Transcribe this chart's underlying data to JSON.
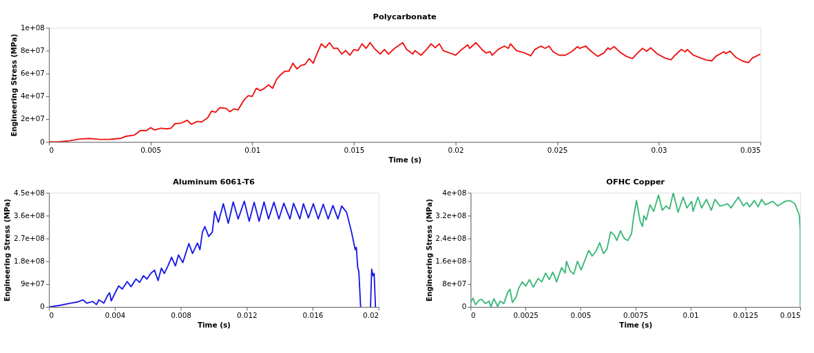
{
  "chart_data": [
    {
      "type": "line",
      "title": "Polycarbonate",
      "xlabel": "Time (s)",
      "ylabel": "Engineering Stress (MPa)",
      "xlim": [
        0,
        0.035
      ],
      "ylim": [
        0,
        100000000.0
      ],
      "xticks": [
        0,
        0.005,
        0.01,
        0.015,
        0.02,
        0.025,
        0.03,
        0.035
      ],
      "yticks": [
        0,
        {
          "value": 20000000.0,
          "label": "2e+07"
        },
        {
          "value": 40000000.0,
          "label": "4e+07"
        },
        {
          "value": 60000000.0,
          "label": "6e+07"
        },
        {
          "value": 80000000.0,
          "label": "8e+07"
        },
        {
          "value": 100000000.0,
          "label": "1e+08"
        }
      ],
      "x": [
        0,
        0.0005,
        0.001,
        0.0015,
        0.002,
        0.0025,
        0.003,
        0.0035,
        0.0038,
        0.0042,
        0.0045,
        0.0048,
        0.005,
        0.0052,
        0.0055,
        0.0058,
        0.006,
        0.0062,
        0.0065,
        0.0068,
        0.007,
        0.0073,
        0.0075,
        0.0078,
        0.008,
        0.0082,
        0.0084,
        0.0087,
        0.0089,
        0.0091,
        0.0093,
        0.0096,
        0.0098,
        0.01,
        0.0102,
        0.0104,
        0.0106,
        0.0108,
        0.011,
        0.0112,
        0.0114,
        0.0116,
        0.0118,
        0.012,
        0.0122,
        0.0124,
        0.0126,
        0.0128,
        0.013,
        0.0132,
        0.0134,
        0.0136,
        0.0138,
        0.014,
        0.0142,
        0.0144,
        0.0146,
        0.0148,
        0.015,
        0.0152,
        0.0154,
        0.0156,
        0.0158,
        0.016,
        0.0163,
        0.0165,
        0.0167,
        0.017,
        0.0174,
        0.0176,
        0.0179,
        0.018,
        0.0183,
        0.0186,
        0.0188,
        0.019,
        0.0192,
        0.0194,
        0.0197,
        0.02,
        0.0203,
        0.0206,
        0.0207,
        0.021,
        0.0213,
        0.0215,
        0.0217,
        0.0218,
        0.0221,
        0.0224,
        0.0226,
        0.0227,
        0.023,
        0.0234,
        0.0237,
        0.0239,
        0.0242,
        0.0244,
        0.0246,
        0.0248,
        0.0251,
        0.0254,
        0.0257,
        0.026,
        0.0261,
        0.0264,
        0.0267,
        0.027,
        0.0273,
        0.0275,
        0.0276,
        0.0278,
        0.0281,
        0.0284,
        0.0287,
        0.0289,
        0.0292,
        0.0294,
        0.0296,
        0.0299,
        0.0303,
        0.0306,
        0.0308,
        0.0311,
        0.0313,
        0.0314,
        0.0317,
        0.0323,
        0.0326,
        0.0328,
        0.0332,
        0.0333,
        0.0335,
        0.0338,
        0.0341,
        0.0344,
        0.0346,
        0.035
      ],
      "series": [
        {
          "color": "#ee1111",
          "values": [
            0,
            200000.0,
            1000000.0,
            2500000.0,
            3000000.0,
            2200000.0,
            2300000.0,
            3000000.0,
            5000000.0,
            6000000.0,
            10000000.0,
            10000000.0,
            12500000.0,
            10500000.0,
            12000000.0,
            11500000.0,
            12000000.0,
            16000000.0,
            16500000.0,
            19000000.0,
            15500000.0,
            18000000.0,
            17500000.0,
            21000000.0,
            27000000.0,
            26000000.0,
            30000000.0,
            29500000.0,
            26500000.0,
            29000000.0,
            28000000.0,
            37000000.0,
            40500000.0,
            40000000.0,
            47000000.0,
            45000000.0,
            47000000.0,
            50000000.0,
            47000000.0,
            55000000.0,
            59000000.0,
            62000000.0,
            62000000.0,
            69000000.0,
            64000000.0,
            67000000.0,
            68000000.0,
            73000000.0,
            69000000.0,
            78000000.0,
            86000000.0,
            82500000.0,
            87000000.0,
            82000000.0,
            82000000.0,
            77000000.0,
            80000000.0,
            76000000.0,
            81000000.0,
            80000000.0,
            86000000.0,
            82000000.0,
            87000000.0,
            82000000.0,
            77000000.0,
            81000000.0,
            77000000.0,
            82000000.0,
            87000000.0,
            81000000.0,
            77000000.0,
            80000000.0,
            76000000.0,
            81500000.0,
            86000000.0,
            82500000.0,
            86000000.0,
            80000000.0,
            78000000.0,
            76000000.0,
            81000000.0,
            85000000.0,
            82000000.0,
            87000000.0,
            81000000.0,
            78000000.0,
            79000000.0,
            76000000.0,
            81000000.0,
            84000000.0,
            82000000.0,
            86000000.0,
            80000000.0,
            78000000.0,
            75500000.0,
            81000000.0,
            84000000.0,
            82000000.0,
            84000000.0,
            79000000.0,
            76000000.0,
            76000000.0,
            79000000.0,
            83500000.0,
            82000000.0,
            84000000.0,
            79000000.0,
            75000000.0,
            78000000.0,
            82500000.0,
            81000000.0,
            83500000.0,
            78500000.0,
            75000000.0,
            73000000.0,
            77000000.0,
            82000000.0,
            79500000.0,
            82500000.0,
            77500000.0,
            73500000.0,
            72000000.0,
            76000000.0,
            81000000.0,
            79000000.0,
            81000000.0,
            76000000.0,
            72000000.0,
            71000000.0,
            75000000.0,
            79000000.0,
            77500000.0,
            79500000.0,
            74000000.0,
            71000000.0,
            69500000.0,
            73500000.0,
            77000000.0
          ]
        }
      ]
    },
    {
      "type": "line",
      "title": "Aluminum 6061-T6",
      "xlabel": "Time (s)",
      "ylabel": "Engineering Stress (MPa)",
      "xlim": [
        0,
        0.02
      ],
      "ylim": [
        0,
        450000000.0
      ],
      "xticks": [
        0,
        0.004,
        0.008,
        0.012,
        0.016,
        0.02
      ],
      "yticks": [
        0,
        {
          "value": 90000000.0,
          "label": "9e+07"
        },
        {
          "value": 180000000.0,
          "label": "1.8e+08"
        },
        {
          "value": 270000000.0,
          "label": "2.7e+08"
        },
        {
          "value": 360000000.0,
          "label": "3.6e+08"
        },
        {
          "value": 450000000.0,
          "label": "4.5e+08"
        }
      ],
      "x": [
        0,
        0.00072,
        0.0013,
        0.00176,
        0.00206,
        0.00229,
        0.00266,
        0.00288,
        0.00303,
        0.00333,
        0.00356,
        0.00368,
        0.00378,
        0.004,
        0.00423,
        0.00445,
        0.00475,
        0.00498,
        0.00528,
        0.0055,
        0.00573,
        0.00595,
        0.00617,
        0.0064,
        0.00662,
        0.00682,
        0.007,
        0.00722,
        0.00744,
        0.00767,
        0.00786,
        0.00812,
        0.00849,
        0.00871,
        0.00901,
        0.00916,
        0.00931,
        0.00946,
        0.00969,
        0.00991,
        0.01006,
        0.01028,
        0.01058,
        0.01088,
        0.01118,
        0.01148,
        0.01185,
        0.01215,
        0.01245,
        0.01275,
        0.01305,
        0.01332,
        0.01365,
        0.01395,
        0.01425,
        0.01462,
        0.01484,
        0.01522,
        0.01544,
        0.01574,
        0.01604,
        0.01634,
        0.01664,
        0.01694,
        0.01723,
        0.01753,
        0.01776,
        0.01806,
        0.01836,
        0.01858,
        0.01865,
        0.01873,
        0.0188,
        0.01891,
        0.0192,
        0.01951,
        0.01958,
        0.01966,
        0.01973,
        0.01981
      ],
      "series": [
        {
          "color": "#1a1ae6",
          "values": [
            0,
            7000000.0,
            15000000.0,
            20000000.0,
            28000000.0,
            15000000.0,
            21500000.0,
            9500000.0,
            28000000.0,
            15000000.0,
            46000000.0,
            56000000.0,
            24000000.0,
            54000000.0,
            83000000.0,
            71000000.0,
            100000000.0,
            80000000.0,
            110000000.0,
            97000000.0,
            123000000.0,
            110000000.0,
            132000000.0,
            145000000.0,
            104000000.0,
            153000000.0,
            132000000.0,
            162000000.0,
            196000000.0,
            162000000.0,
            205000000.0,
            175000000.0,
            250000000.0,
            211000000.0,
            252000000.0,
            226000000.0,
            295000000.0,
            317000000.0,
            278000000.0,
            295000000.0,
            377000000.0,
            334000000.0,
            407000000.0,
            330000000.0,
            414000000.0,
            347000000.0,
            417000000.0,
            338000000.0,
            413000000.0,
            338000000.0,
            414000000.0,
            347000000.0,
            413000000.0,
            347000000.0,
            409000000.0,
            347000000.0,
            409000000.0,
            347000000.0,
            407000000.0,
            351000000.0,
            407000000.0,
            347000000.0,
            405000000.0,
            347000000.0,
            400000000.0,
            347000000.0,
            398000000.0,
            373000000.0,
            295000000.0,
            226000000.0,
            235000000.0,
            157000000.0,
            140000000.0,
            0,
            null,
            0,
            149000000.0,
            123000000.0,
            132000000.0,
            0
          ]
        }
      ]
    },
    {
      "type": "line",
      "title": "OFHC Copper",
      "xlabel": "Time (s)",
      "ylabel": "Engineering Stress (MPa)",
      "xlim": [
        0,
        0.015
      ],
      "ylim": [
        0,
        400000000.0
      ],
      "xticks": [
        0,
        0.0025,
        0.005,
        0.0075,
        0.01,
        0.0125,
        0.015
      ],
      "yticks": [
        0,
        {
          "value": 80000000.0,
          "label": "8e+07"
        },
        {
          "value": 160000000.0,
          "label": "1.6e+08"
        },
        {
          "value": 240000000.0,
          "label": "2.4e+08"
        },
        {
          "value": 320000000.0,
          "label": "3.2e+08"
        },
        {
          "value": 400000000.0,
          "label": "4e+08"
        }
      ],
      "x": [
        0,
        0.00011,
        0.00022,
        0.00039,
        0.0005,
        0.00067,
        0.00084,
        0.00092,
        0.00106,
        0.00123,
        0.00134,
        0.00151,
        0.00168,
        0.00179,
        0.0019,
        0.00207,
        0.00218,
        0.00235,
        0.00251,
        0.00268,
        0.00285,
        0.00307,
        0.00324,
        0.00341,
        0.00358,
        0.00374,
        0.00391,
        0.00414,
        0.0043,
        0.00436,
        0.00453,
        0.00469,
        0.00486,
        0.00503,
        0.0052,
        0.00537,
        0.00553,
        0.0057,
        0.00587,
        0.00604,
        0.0062,
        0.00637,
        0.00654,
        0.00665,
        0.00682,
        0.00699,
        0.00715,
        0.00732,
        0.00743,
        0.00755,
        0.00771,
        0.00782,
        0.00788,
        0.00799,
        0.00816,
        0.00833,
        0.00855,
        0.00872,
        0.00889,
        0.00905,
        0.00922,
        0.00944,
        0.00967,
        0.00984,
        0.01006,
        0.01012,
        0.01034,
        0.01051,
        0.01073,
        0.01095,
        0.01112,
        0.01134,
        0.01157,
        0.01168,
        0.01185,
        0.01218,
        0.01241,
        0.01257,
        0.01269,
        0.01291,
        0.01308,
        0.01324,
        0.01341,
        0.01375,
        0.01397,
        0.01431,
        0.01453,
        0.01475,
        0.01487,
        0.01495,
        0.015,
        0.015
      ],
      "series": [
        {
          "color": "#3cb878",
          "values": [
            16000000.0,
            31000000.0,
            8000000.0,
            24000000.0,
            27000000.0,
            12000000.0,
            20000000.0,
            1000000.0,
            29000000.0,
            2000000.0,
            20000000.0,
            12000000.0,
            50000000.0,
            62000000.0,
            16000000.0,
            35000000.0,
            65000000.0,
            88000000.0,
            73000000.0,
            96000000.0,
            69000000.0,
            100000000.0,
            88000000.0,
            119000000.0,
            96000000.0,
            122000000.0,
            88000000.0,
            138000000.0,
            119000000.0,
            160000000.0,
            126000000.0,
            115000000.0,
            160000000.0,
            130000000.0,
            164000000.0,
            198000000.0,
            179000000.0,
            195000000.0,
            225000000.0,
            187000000.0,
            202000000.0,
            263000000.0,
            252000000.0,
            233000000.0,
            267000000.0,
            240000000.0,
            233000000.0,
            256000000.0,
            324000000.0,
            373000000.0,
            301000000.0,
            282000000.0,
            320000000.0,
            305000000.0,
            358000000.0,
            335000000.0,
            392000000.0,
            339000000.0,
            354000000.0,
            343000000.0,
            400000000.0,
            332000000.0,
            385000000.0,
            347000000.0,
            370000000.0,
            335000000.0,
            385000000.0,
            347000000.0,
            377000000.0,
            339000000.0,
            377000000.0,
            354000000.0,
            358000000.0,
            362000000.0,
            347000000.0,
            385000000.0,
            354000000.0,
            366000000.0,
            351000000.0,
            373000000.0,
            351000000.0,
            377000000.0,
            358000000.0,
            370000000.0,
            354000000.0,
            370000000.0,
            373000000.0,
            362000000.0,
            339000000.0,
            324000000.0,
            271000000.0,
            0
          ]
        }
      ]
    }
  ]
}
